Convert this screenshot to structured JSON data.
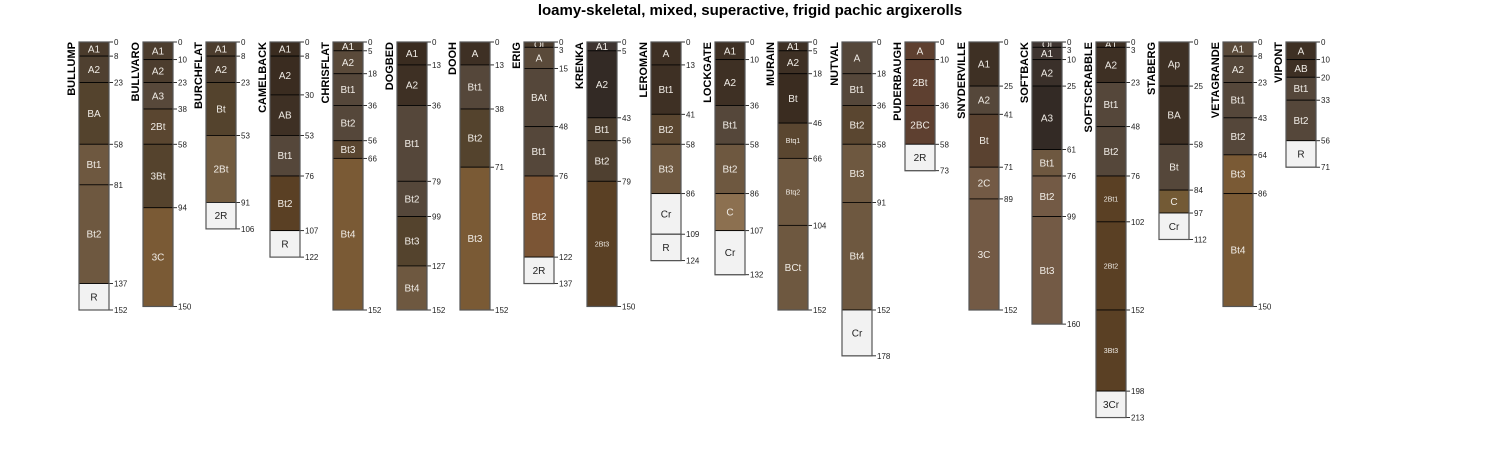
{
  "chart_data": {
    "type": "soil-profile",
    "title": "loamy-skeletal, mixed, superactive, frigid pachic argixerolls",
    "depth_units": "cm",
    "profiles": [
      {
        "name": "BULLUMP",
        "horizons": [
          [
            "A1",
            0,
            8,
            "#4a3b2c"
          ],
          [
            "A2",
            8,
            23,
            "#4f4030"
          ],
          [
            "BA",
            23,
            58,
            "#54432d"
          ],
          [
            "Bt1",
            58,
            81,
            "#6e5840"
          ],
          [
            "Bt2",
            81,
            137,
            "#6e5840"
          ],
          [
            "R",
            137,
            152,
            "#f2f2f2"
          ]
        ]
      },
      {
        "name": "BULLVARO",
        "horizons": [
          [
            "A1",
            0,
            10,
            "#4c3d2e"
          ],
          [
            "A2",
            10,
            23,
            "#4c3d2e"
          ],
          [
            "A3",
            23,
            38,
            "#57483a"
          ],
          [
            "2Bt",
            38,
            58,
            "#5a4630"
          ],
          [
            "3Bt",
            58,
            94,
            "#55432d"
          ],
          [
            "3C",
            94,
            150,
            "#7a5a35"
          ]
        ]
      },
      {
        "name": "BURCHFLAT",
        "horizons": [
          [
            "A1",
            0,
            8,
            "#4c3d2e"
          ],
          [
            "A2",
            8,
            23,
            "#4c3d2e"
          ],
          [
            "Bt",
            23,
            53,
            "#54432d"
          ],
          [
            "2Bt",
            53,
            91,
            "#735c40"
          ],
          [
            "2R",
            91,
            106,
            "#f2f2f2"
          ]
        ]
      },
      {
        "name": "CAMELBACK",
        "horizons": [
          [
            "A1",
            0,
            8,
            "#3a2c20"
          ],
          [
            "A2",
            8,
            30,
            "#3a2c20"
          ],
          [
            "AB",
            30,
            53,
            "#3e3024"
          ],
          [
            "Bt1",
            53,
            76,
            "#55473a"
          ],
          [
            "Bt2",
            76,
            107,
            "#5a4024"
          ],
          [
            "R",
            107,
            122,
            "#f2f2f2"
          ]
        ]
      },
      {
        "name": "CHRISFLAT",
        "horizons": [
          [
            "A1",
            0,
            5,
            "#4a3b2c"
          ],
          [
            "A2",
            5,
            18,
            "#5a4a3a"
          ],
          [
            "Bt1",
            18,
            36,
            "#55473a"
          ],
          [
            "Bt2",
            36,
            56,
            "#55473a"
          ],
          [
            "Bt3",
            56,
            66,
            "#5a4630"
          ],
          [
            "Bt4",
            66,
            152,
            "#7a5a35"
          ]
        ]
      },
      {
        "name": "DOGBED",
        "horizons": [
          [
            "A1",
            0,
            13,
            "#3a2c20"
          ],
          [
            "A2",
            13,
            36,
            "#3e3024"
          ],
          [
            "Bt1",
            36,
            79,
            "#55473a"
          ],
          [
            "Bt2",
            79,
            99,
            "#55473a"
          ],
          [
            "Bt3",
            99,
            127,
            "#54432d"
          ],
          [
            "Bt4",
            127,
            152,
            "#6e5840"
          ]
        ]
      },
      {
        "name": "DOOH",
        "horizons": [
          [
            "A",
            0,
            13,
            "#3e3024"
          ],
          [
            "Bt1",
            13,
            38,
            "#55473a"
          ],
          [
            "Bt2",
            38,
            71,
            "#54432d"
          ],
          [
            "Bt3",
            71,
            152,
            "#7a5a35"
          ]
        ]
      },
      {
        "name": "ERIG",
        "horizons": [
          [
            "Oi",
            0,
            3,
            "#4a3b2c"
          ],
          [
            "A",
            3,
            15,
            "#5a4a3a"
          ],
          [
            "BAt",
            15,
            48,
            "#55473a"
          ],
          [
            "Bt1",
            48,
            76,
            "#55473a"
          ],
          [
            "Bt2",
            76,
            122,
            "#7b5535"
          ],
          [
            "2R",
            122,
            137,
            "#f2f2f2"
          ]
        ]
      },
      {
        "name": "KRENKA",
        "horizons": [
          [
            "A1",
            0,
            5,
            "#3e3430"
          ],
          [
            "A2",
            5,
            43,
            "#332a25"
          ],
          [
            "Bt1",
            43,
            56,
            "#4f4030"
          ],
          [
            "Bt2",
            56,
            79,
            "#4f4030"
          ],
          [
            "2Bt3",
            79,
            150,
            "#5a4024"
          ]
        ]
      },
      {
        "name": "LEROMAN",
        "horizons": [
          [
            "A",
            0,
            13,
            "#3e3024"
          ],
          [
            "Bt1",
            13,
            41,
            "#3e3024"
          ],
          [
            "Bt2",
            41,
            58,
            "#5a4630"
          ],
          [
            "Bt3",
            58,
            86,
            "#6e5840"
          ],
          [
            "Cr",
            86,
            109,
            "#f2f2f2"
          ],
          [
            "R",
            109,
            124,
            "#f2f2f2"
          ]
        ]
      },
      {
        "name": "LOCKGATE",
        "horizons": [
          [
            "A1",
            0,
            10,
            "#3e3024"
          ],
          [
            "A2",
            10,
            36,
            "#3e3024"
          ],
          [
            "Bt1",
            36,
            58,
            "#55473a"
          ],
          [
            "Bt2",
            58,
            86,
            "#6e5840"
          ],
          [
            "C",
            86,
            107,
            "#8c7050"
          ],
          [
            "Cr",
            107,
            132,
            "#f2f2f2"
          ]
        ]
      },
      {
        "name": "MURAIN",
        "horizons": [
          [
            "A1",
            0,
            5,
            "#3e3024"
          ],
          [
            "A2",
            5,
            18,
            "#3e3024"
          ],
          [
            "Bt",
            18,
            46,
            "#3a2c20"
          ],
          [
            "Btq1",
            46,
            66,
            "#5a4630"
          ],
          [
            "Btq2",
            66,
            104,
            "#6e5840"
          ],
          [
            "BCt",
            104,
            152,
            "#6e5840"
          ]
        ]
      },
      {
        "name": "NUTVAL",
        "horizons": [
          [
            "A",
            0,
            18,
            "#55473a"
          ],
          [
            "Bt1",
            18,
            36,
            "#55473a"
          ],
          [
            "Bt2",
            36,
            58,
            "#5a4630"
          ],
          [
            "Bt3",
            58,
            91,
            "#6e5840"
          ],
          [
            "Bt4",
            91,
            152,
            "#6e5840"
          ],
          [
            "Cr",
            152,
            178,
            "#f2f2f2"
          ]
        ]
      },
      {
        "name": "PUDERBAUGH",
        "horizons": [
          [
            "A",
            0,
            10,
            "#5e4030"
          ],
          [
            "2Bt",
            10,
            36,
            "#5e4030"
          ],
          [
            "2BC",
            36,
            58,
            "#5e4030"
          ],
          [
            "2R",
            58,
            73,
            "#f2f2f2"
          ]
        ]
      },
      {
        "name": "SNYDERVILLE",
        "horizons": [
          [
            "A1",
            0,
            25,
            "#3e3024"
          ],
          [
            "A2",
            25,
            41,
            "#55473a"
          ],
          [
            "Bt",
            41,
            71,
            "#5a4230"
          ],
          [
            "2C",
            71,
            89,
            "#735a45"
          ],
          [
            "3C",
            89,
            152,
            "#735a45"
          ]
        ]
      },
      {
        "name": "SOFTBACK",
        "horizons": [
          [
            "Oi",
            0,
            3,
            "#3e3430"
          ],
          [
            "A1",
            3,
            10,
            "#3e3430"
          ],
          [
            "A2",
            10,
            25,
            "#3a302a"
          ],
          [
            "A3",
            25,
            61,
            "#332a25"
          ],
          [
            "Bt1",
            61,
            76,
            "#6e5840"
          ],
          [
            "Bt2",
            76,
            99,
            "#735a45"
          ],
          [
            "Bt3",
            99,
            160,
            "#735a45"
          ]
        ]
      },
      {
        "name": "SOFTSCRABBLE",
        "horizons": [
          [
            "A1",
            0,
            3,
            "#3e3024"
          ],
          [
            "A2",
            3,
            23,
            "#3e3024"
          ],
          [
            "Bt1",
            23,
            48,
            "#55473a"
          ],
          [
            "Bt2",
            48,
            76,
            "#55473a"
          ],
          [
            "2Bt1",
            76,
            102,
            "#5a4024"
          ],
          [
            "2Bt2",
            102,
            152,
            "#5a4024"
          ],
          [
            "3Bt3",
            152,
            198,
            "#5a4024"
          ],
          [
            "3Cr",
            198,
            213,
            "#f2f2f2"
          ]
        ]
      },
      {
        "name": "STABERG",
        "horizons": [
          [
            "Ap",
            0,
            25,
            "#3e3024"
          ],
          [
            "BA",
            25,
            58,
            "#3e3024"
          ],
          [
            "Bt",
            58,
            84,
            "#55473a"
          ],
          [
            "C",
            84,
            97,
            "#735a35"
          ],
          [
            "Cr",
            97,
            112,
            "#f2f2f2"
          ]
        ]
      },
      {
        "name": "VETAGRANDE",
        "horizons": [
          [
            "A1",
            0,
            8,
            "#5a4a3a"
          ],
          [
            "A2",
            8,
            23,
            "#55473a"
          ],
          [
            "Bt1",
            23,
            43,
            "#55473a"
          ],
          [
            "Bt2",
            43,
            64,
            "#55473a"
          ],
          [
            "Bt3",
            64,
            86,
            "#7a5a35"
          ],
          [
            "Bt4",
            86,
            150,
            "#7a5a35"
          ]
        ]
      },
      {
        "name": "VIPONT",
        "horizons": [
          [
            "A",
            0,
            10,
            "#3e3024"
          ],
          [
            "AB",
            10,
            20,
            "#3e3024"
          ],
          [
            "Bt1",
            20,
            33,
            "#55473a"
          ],
          [
            "Bt2",
            33,
            56,
            "#55473a"
          ],
          [
            "R",
            56,
            71,
            "#f2f2f2"
          ]
        ]
      }
    ]
  }
}
